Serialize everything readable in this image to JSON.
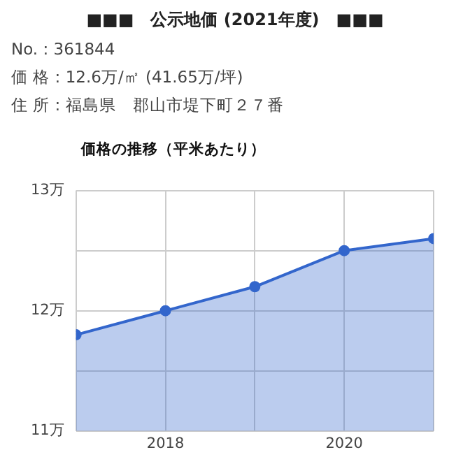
{
  "chart_data": {
    "type": "area",
    "title": "■■■　公示地価 (2021年度)　■■■",
    "subtitle": "価格の推移（平米あたり）",
    "annotations": [
      "No. : 361844",
      "価 格 : 12.6万/㎡ (41.65万/坪)",
      "住 所 : 福島県　郡山市堤下町２７番"
    ],
    "x": [
      2017,
      2018,
      2019,
      2020,
      2021
    ],
    "series": [
      {
        "color": "#3366cc",
        "values": [
          11.8,
          12.0,
          12.2,
          12.5,
          12.6
        ]
      }
    ],
    "xlim": [
      2017,
      2021
    ],
    "xticks": [
      {
        "value": 2017,
        "label": null
      },
      2018,
      {
        "value": 2019,
        "label": null
      },
      2020,
      {
        "value": 2021,
        "label": null
      }
    ],
    "ylim": [
      11,
      13
    ],
    "yticks": [
      {
        "value": 11,
        "label": "11万"
      },
      {
        "value": 11.5,
        "label": null
      },
      {
        "value": 12,
        "label": "12万"
      },
      {
        "value": 12.5,
        "label": null
      },
      {
        "value": 13,
        "label": "13万"
      }
    ],
    "grid": true,
    "marker": "circle",
    "legend": false
  }
}
